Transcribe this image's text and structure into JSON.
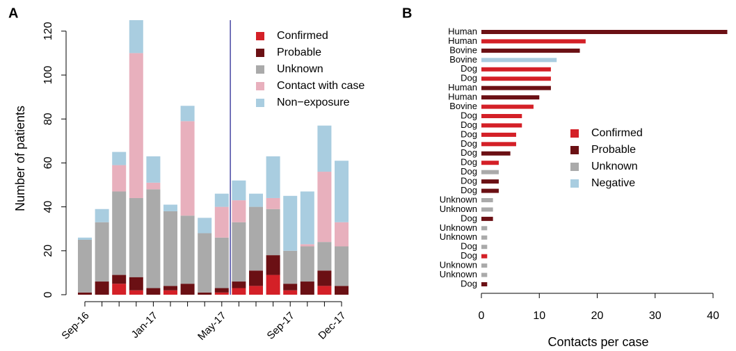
{
  "chart_data": [
    {
      "type": "bar",
      "stacked": true,
      "panel_label": "A",
      "y_label": "Number of patients",
      "categories": [
        "Sep-16",
        null,
        null,
        null,
        "Jan-17",
        null,
        null,
        null,
        "May-17",
        null,
        null,
        null,
        "Sep-17",
        null,
        null,
        "Dec-17"
      ],
      "series": [
        {
          "name": "Confirmed",
          "color": "#d42027",
          "values": [
            0,
            0,
            5,
            2,
            0,
            2,
            0,
            0,
            1,
            3,
            4,
            9,
            2,
            0,
            4,
            0
          ]
        },
        {
          "name": "Probable",
          "color": "#6b1014",
          "values": [
            1,
            6,
            4,
            6,
            3,
            2,
            5,
            1,
            2,
            3,
            7,
            9,
            3,
            6,
            7,
            4
          ]
        },
        {
          "name": "Unknown",
          "color": "#aaaaaa",
          "values": [
            24,
            27,
            38,
            36,
            45,
            34,
            31,
            27,
            23,
            27,
            29,
            21,
            15,
            16,
            13,
            18
          ]
        },
        {
          "name": "Contact with case",
          "color": "#e8b0bd",
          "values": [
            0,
            0,
            12,
            66,
            3,
            0,
            43,
            0,
            14,
            10,
            0,
            5,
            0,
            1,
            32,
            11
          ]
        },
        {
          "name": "Non−exposure",
          "color": "#a9cde0",
          "values": [
            1,
            6,
            6,
            15,
            12,
            3,
            7,
            7,
            6,
            9,
            6,
            19,
            25,
            24,
            21,
            28
          ]
        }
      ],
      "ylim": [
        0,
        125
      ],
      "yticks": [
        0,
        20,
        40,
        60,
        80,
        100,
        120
      ]
    },
    {
      "type": "bar",
      "orientation": "horizontal",
      "stacked": false,
      "panel_label": "B",
      "x_label": "Contacts per case",
      "categories": [
        "Human",
        "Human",
        "Bovine",
        "Bovine",
        "Dog",
        "Dog",
        "Human",
        "Human",
        "Bovine",
        "Dog",
        "Dog",
        "Dog",
        "Dog",
        "Dog",
        "Dog",
        "Dog",
        "Dog",
        "Dog",
        "Unknown",
        "Unknown",
        "Dog",
        "Unknown",
        "Unknown",
        "Dog",
        "Dog",
        "Unknown",
        "Unknown",
        "Dog"
      ],
      "series": [
        {
          "name": "Confirmed",
          "color": "#d42027",
          "values": [
            null,
            18,
            null,
            null,
            12,
            12,
            null,
            null,
            9,
            7,
            7,
            6,
            6,
            null,
            3,
            null,
            null,
            null,
            null,
            null,
            null,
            null,
            null,
            null,
            1,
            null,
            null,
            null
          ]
        },
        {
          "name": "Probable",
          "color": "#6b1014",
          "values": [
            43,
            null,
            17,
            null,
            null,
            null,
            12,
            10,
            null,
            null,
            null,
            null,
            null,
            5,
            null,
            null,
            3,
            3,
            null,
            null,
            2,
            null,
            null,
            null,
            null,
            null,
            null,
            1
          ]
        },
        {
          "name": "Unknown",
          "color": "#aaaaaa",
          "values": [
            null,
            null,
            null,
            null,
            null,
            null,
            null,
            null,
            null,
            null,
            null,
            null,
            null,
            null,
            null,
            3,
            null,
            null,
            2,
            2,
            null,
            1,
            1,
            1,
            null,
            1,
            1,
            null
          ]
        },
        {
          "name": "Negative",
          "color": "#a9cde0",
          "values": [
            null,
            null,
            null,
            13,
            null,
            null,
            null,
            null,
            null,
            null,
            null,
            null,
            null,
            null,
            null,
            null,
            null,
            null,
            null,
            null,
            null,
            null,
            null,
            null,
            null,
            null,
            null,
            null
          ]
        }
      ],
      "xlim": [
        0,
        42.4
      ],
      "xticks": [
        0,
        10,
        20,
        30,
        40
      ]
    }
  ]
}
